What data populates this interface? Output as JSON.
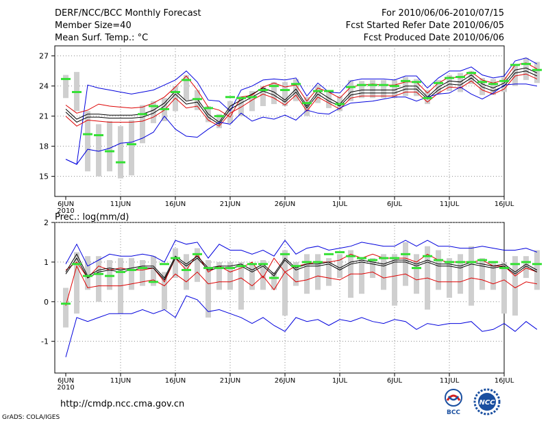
{
  "header": {
    "title": "DERF/NCC/BCC Monthly Forecast",
    "member": "Member Size=40",
    "variable": "Mean Surf. Temp.: °C",
    "period": "For 2010/06/06-2010/07/15",
    "started": "Fcst Started Refer Date 2010/06/05",
    "produced": "Fcst Produced Date 2010/06/06"
  },
  "footer": {
    "url": "http://cmdp.ncc.cma.gov.cn",
    "grads": "GrADS: COLA/IGES",
    "logo_bcc": "BCC",
    "logo_ncc": "NCC"
  },
  "chart_data": [
    {
      "type": "line",
      "title": "Mean Surf. Temp.: °C",
      "x_ticks": [
        "6JUN",
        "11JUN",
        "16JUN",
        "21JUN",
        "26JUN",
        "1JUL",
        "6JUL",
        "11JUL",
        "16JUL"
      ],
      "x_year": "2010",
      "ylim": [
        13,
        28
      ],
      "yticks": [
        15,
        18,
        21,
        24,
        27
      ],
      "series": [
        {
          "name": "max",
          "color": "#0000dd",
          "values": [
            16.7,
            16.2,
            24.1,
            23.8,
            23.6,
            23.4,
            23.2,
            23.4,
            23.6,
            24.1,
            24.6,
            25.5,
            24.4,
            22.6,
            22.5,
            21.5,
            23.6,
            24.0,
            24.6,
            24.7,
            24.6,
            24.8,
            23.0,
            24.3,
            23.4,
            23.3,
            24.5,
            24.7,
            24.7,
            24.7,
            24.6,
            25.0,
            25.0,
            23.8,
            24.8,
            25.5,
            25.5,
            25.9,
            25.1,
            24.8,
            25.0,
            26.5,
            26.8,
            26.2
          ]
        },
        {
          "name": "p90",
          "color": "#dd0000",
          "values": [
            22.1,
            21.3,
            21.6,
            22.2,
            22.0,
            21.9,
            21.8,
            21.9,
            22.3,
            22.9,
            23.9,
            25.0,
            23.6,
            21.9,
            21.6,
            20.9,
            22.9,
            23.1,
            23.9,
            24.3,
            23.9,
            24.1,
            22.5,
            23.8,
            23.4,
            22.8,
            23.9,
            24.1,
            24.2,
            24.1,
            24.1,
            24.4,
            24.4,
            23.3,
            24.3,
            24.9,
            24.8,
            25.4,
            24.6,
            24.3,
            24.6,
            26.1,
            26.3,
            25.7
          ]
        },
        {
          "name": "mean_upper",
          "color": "#000000",
          "values": [
            21.7,
            20.7,
            21.2,
            21.2,
            21.1,
            21.1,
            21.1,
            21.2,
            21.6,
            22.3,
            23.5,
            22.5,
            22.7,
            21.2,
            20.4,
            22.0,
            22.6,
            23.2,
            23.8,
            23.4,
            22.6,
            23.7,
            22.0,
            23.5,
            22.8,
            22.2,
            23.4,
            23.6,
            23.6,
            23.6,
            23.6,
            24.0,
            24.0,
            22.9,
            23.9,
            24.5,
            24.4,
            25.1,
            24.2,
            23.8,
            24.3,
            25.6,
            25.8,
            25.3
          ]
        },
        {
          "name": "mean",
          "color": "#000000",
          "values": [
            21.4,
            20.4,
            20.9,
            20.9,
            20.8,
            20.8,
            20.8,
            20.9,
            21.3,
            22.0,
            23.2,
            22.2,
            22.4,
            20.9,
            20.2,
            21.7,
            22.3,
            22.9,
            23.5,
            23.1,
            22.4,
            23.4,
            21.8,
            23.2,
            22.5,
            22.0,
            23.1,
            23.3,
            23.3,
            23.3,
            23.3,
            23.7,
            23.7,
            22.7,
            23.6,
            24.2,
            24.1,
            24.8,
            23.9,
            23.5,
            24.0,
            25.3,
            25.5,
            25.0
          ]
        },
        {
          "name": "p10",
          "color": "#dd0000",
          "values": [
            21.0,
            20.0,
            20.6,
            20.5,
            20.4,
            20.4,
            20.4,
            20.5,
            20.9,
            21.6,
            22.8,
            21.8,
            22.0,
            20.6,
            20.0,
            21.3,
            21.9,
            22.6,
            23.2,
            22.8,
            22.1,
            23.1,
            21.5,
            22.9,
            22.3,
            21.7,
            22.8,
            23.0,
            23.0,
            23.0,
            23.0,
            23.4,
            23.4,
            22.4,
            23.3,
            23.9,
            23.8,
            24.5,
            23.6,
            23.2,
            23.7,
            25.0,
            25.2,
            24.7
          ]
        },
        {
          "name": "min",
          "color": "#0000dd",
          "values": [
            16.7,
            16.2,
            17.7,
            17.5,
            17.8,
            18.3,
            18.4,
            18.8,
            19.4,
            21.0,
            19.7,
            19.0,
            18.9,
            19.7,
            20.4,
            20.2,
            21.3,
            20.5,
            20.9,
            20.7,
            21.1,
            20.6,
            21.6,
            21.3,
            21.2,
            21.8,
            22.3,
            22.4,
            22.5,
            22.7,
            22.9,
            22.9,
            22.5,
            22.9,
            23.2,
            23.3,
            23.9,
            23.2,
            22.7,
            23.3,
            24.1,
            24.2,
            24.2,
            24.0
          ]
        }
      ],
      "boxes": [
        [
          22.8,
          25.1
        ],
        [
          21.5,
          25.4
        ],
        [
          15.5,
          21.5
        ],
        [
          15.0,
          20.2
        ],
        [
          15.5,
          20.5
        ],
        [
          14.8,
          20.0
        ],
        [
          15.1,
          20.6
        ],
        [
          18.3,
          22.1
        ],
        [
          20.3,
          22.5
        ],
        [
          20.5,
          22.8
        ],
        [
          21.5,
          24.0
        ],
        [
          22.6,
          25.1
        ],
        [
          21.6,
          23.6
        ],
        [
          20.4,
          22.0
        ],
        [
          19.8,
          21.2
        ],
        [
          20.3,
          22.5
        ],
        [
          21.0,
          23.0
        ],
        [
          21.5,
          23.5
        ],
        [
          22.0,
          24.0
        ],
        [
          22.2,
          24.4
        ],
        [
          22.0,
          24.4
        ],
        [
          22.5,
          24.7
        ],
        [
          21.0,
          22.9
        ],
        [
          22.3,
          24.1
        ],
        [
          21.8,
          23.6
        ],
        [
          21.5,
          23.0
        ],
        [
          22.5,
          24.6
        ],
        [
          22.8,
          24.5
        ],
        [
          22.8,
          24.6
        ],
        [
          22.8,
          24.6
        ],
        [
          22.8,
          24.6
        ],
        [
          23.0,
          24.9
        ],
        [
          23.0,
          24.7
        ],
        [
          22.2,
          23.6
        ],
        [
          23.2,
          24.6
        ],
        [
          23.5,
          25.1
        ],
        [
          23.4,
          25.3
        ],
        [
          24.2,
          25.5
        ],
        [
          23.1,
          24.8
        ],
        [
          23.1,
          24.7
        ],
        [
          23.4,
          24.9
        ],
        [
          24.0,
          26.0
        ],
        [
          24.6,
          26.8
        ],
        [
          24.3,
          26.4
        ]
      ],
      "median": [
        24.7,
        23.4,
        19.2,
        19.1,
        17.5,
        16.4,
        18.2,
        21.2,
        22.0,
        21.7,
        23.4,
        24.6,
        22.7,
        21.8,
        21.0,
        22.9,
        22.8,
        22.9,
        23.6,
        24.0,
        23.6,
        24.2,
        22.3,
        23.5,
        23.5,
        22.2,
        23.9,
        24.1,
        24.1,
        24.1,
        24.0,
        24.5,
        24.4,
        22.8,
        24.3,
        24.8,
        24.9,
        25.3,
        24.4,
        24.2,
        24.5,
        26.1,
        26.2,
        25.6
      ]
    },
    {
      "type": "line",
      "title": "Prec.: log(mm/d)",
      "x_ticks": [
        "6JUN",
        "11JUN",
        "16JUN",
        "21JUN",
        "26JUN",
        "1JUL",
        "6JUL",
        "11JUL",
        "16JUL"
      ],
      "x_year": "2010",
      "ylim": [
        -1.8,
        2.0
      ],
      "yticks": [
        -1,
        0,
        1,
        2
      ],
      "series": [
        {
          "name": "max",
          "color": "#0000dd",
          "values": [
            -1.4,
            -0.4,
            -0.5,
            -0.4,
            -0.3,
            -0.3,
            -0.3,
            -0.2,
            -0.3,
            -0.2,
            -0.4,
            0.15,
            0.05,
            -0.25,
            -0.2,
            -0.3,
            -0.4,
            -0.55,
            -0.4,
            -0.6,
            -0.75,
            -0.4,
            -0.5,
            -0.45,
            -0.6,
            -0.45,
            -0.5,
            -0.4,
            -0.5,
            -0.55,
            -0.45,
            -0.5,
            -0.7,
            -0.55,
            -0.6,
            -0.55,
            -0.55,
            -0.5,
            -0.75,
            -0.7,
            -0.55,
            -0.75,
            -0.5,
            -0.7
          ]
        },
        {
          "name": "p90",
          "color": "#dd0000",
          "values": [
            0.8,
            1.0,
            0.6,
            0.9,
            0.8,
            0.85,
            0.8,
            0.8,
            0.85,
            0.5,
            1.1,
            0.8,
            1.2,
            0.75,
            0.9,
            0.75,
            0.85,
            1.0,
            0.6,
            1.1,
            0.75,
            0.9,
            0.95,
            1.0,
            1.0,
            1.05,
            1.2,
            1.1,
            1.2,
            1.1,
            1.1,
            1.1,
            1.0,
            1.2,
            1.05,
            1.0,
            1.0,
            1.0,
            1.05,
            0.9,
            0.9,
            0.65,
            0.85,
            0.75
          ]
        },
        {
          "name": "mean_upper",
          "color": "#000000",
          "values": [
            0.75,
            1.2,
            0.65,
            0.8,
            0.85,
            0.8,
            0.85,
            0.9,
            0.9,
            0.6,
            1.15,
            0.95,
            1.15,
            0.85,
            0.9,
            0.9,
            0.95,
            0.8,
            0.95,
            0.7,
            1.1,
            0.85,
            0.95,
            0.95,
            1.0,
            0.85,
            1.0,
            1.05,
            1.0,
            0.95,
            1.05,
            1.05,
            0.95,
            1.05,
            0.95,
            0.95,
            0.9,
            1.0,
            0.95,
            0.9,
            0.95,
            0.75,
            0.95,
            0.8
          ]
        },
        {
          "name": "mean",
          "color": "#000000",
          "values": [
            0.7,
            1.1,
            0.6,
            0.75,
            0.8,
            0.75,
            0.8,
            0.85,
            0.85,
            0.55,
            1.1,
            0.9,
            1.1,
            0.8,
            0.85,
            0.85,
            0.9,
            0.75,
            0.9,
            0.65,
            1.05,
            0.8,
            0.9,
            0.9,
            0.95,
            0.8,
            0.95,
            1.0,
            0.95,
            0.9,
            1.0,
            1.0,
            0.9,
            1.0,
            0.9,
            0.9,
            0.85,
            0.95,
            0.9,
            0.85,
            0.9,
            0.7,
            0.9,
            0.75
          ]
        },
        {
          "name": "p10",
          "color": "#dd0000",
          "values": [
            -0.1,
            0.9,
            0.35,
            0.4,
            0.4,
            0.4,
            0.45,
            0.5,
            0.55,
            0.4,
            0.7,
            0.5,
            0.75,
            0.45,
            0.5,
            0.5,
            0.6,
            0.4,
            0.65,
            0.3,
            0.75,
            0.5,
            0.55,
            0.65,
            0.6,
            0.55,
            0.7,
            0.7,
            0.75,
            0.6,
            0.65,
            0.7,
            0.55,
            0.6,
            0.5,
            0.5,
            0.5,
            0.6,
            0.55,
            0.45,
            0.55,
            0.35,
            0.5,
            0.45
          ]
        },
        {
          "name": "min",
          "color": "#0000dd",
          "values": [
            0.95,
            1.45,
            0.9,
            1.05,
            1.2,
            1.15,
            1.15,
            1.2,
            1.15,
            1.0,
            1.55,
            1.45,
            1.5,
            1.1,
            1.45,
            1.3,
            1.3,
            1.2,
            1.3,
            1.15,
            1.55,
            1.2,
            1.35,
            1.4,
            1.3,
            1.35,
            1.4,
            1.5,
            1.45,
            1.4,
            1.4,
            1.55,
            1.4,
            1.55,
            1.4,
            1.4,
            1.35,
            1.35,
            1.4,
            1.35,
            1.3,
            1.3,
            1.35,
            1.25
          ]
        }
      ],
      "boxes": [
        [
          -0.65,
          0.35
        ],
        [
          -0.3,
          1.25
        ],
        [
          0.3,
          1.15
        ],
        [
          0.0,
          1.15
        ],
        [
          0.3,
          1.05
        ],
        [
          -0.3,
          1.1
        ],
        [
          0.3,
          1.1
        ],
        [
          0.4,
          1.05
        ],
        [
          0.4,
          1.15
        ],
        [
          -0.2,
          0.75
        ],
        [
          0.6,
          1.35
        ],
        [
          0.3,
          1.2
        ],
        [
          0.5,
          1.35
        ],
        [
          -0.4,
          1.05
        ],
        [
          0.3,
          1.0
        ],
        [
          0.3,
          1.0
        ],
        [
          -0.2,
          1.0
        ],
        [
          0.3,
          0.95
        ],
        [
          0.3,
          1.05
        ],
        [
          0.3,
          0.75
        ],
        [
          -0.35,
          1.3
        ],
        [
          0.4,
          1.0
        ],
        [
          0.2,
          1.2
        ],
        [
          0.3,
          1.2
        ],
        [
          0.4,
          1.1
        ],
        [
          0.6,
          1.2
        ],
        [
          0.1,
          1.3
        ],
        [
          0.2,
          1.1
        ],
        [
          0.6,
          1.1
        ],
        [
          0.3,
          1.2
        ],
        [
          -0.1,
          1.2
        ],
        [
          0.4,
          1.5
        ],
        [
          0.2,
          1.2
        ],
        [
          -0.2,
          1.4
        ],
        [
          0.3,
          1.3
        ],
        [
          0.1,
          1.1
        ],
        [
          0.2,
          1.2
        ],
        [
          -0.1,
          1.4
        ],
        [
          0.3,
          1.1
        ],
        [
          0.3,
          1.0
        ],
        [
          -0.3,
          1.0
        ],
        [
          -0.35,
          1.15
        ],
        [
          0.6,
          1.15
        ],
        [
          0.3,
          1.3
        ]
      ],
      "median": [
        -0.05,
        0.95,
        0.65,
        0.7,
        0.65,
        0.75,
        0.8,
        0.85,
        0.5,
        0.95,
        1.1,
        0.8,
        1.2,
        0.85,
        0.85,
        0.85,
        0.9,
        0.95,
        0.95,
        0.6,
        1.2,
        0.9,
        1.0,
        1.0,
        1.2,
        1.25,
        1.15,
        1.1,
        1.05,
        1.1,
        1.1,
        1.2,
        0.85,
        1.15,
        1.05,
        1.0,
        1.0,
        1.0,
        1.05,
        1.0,
        0.85,
        0.95,
        1.0,
        0.95
      ]
    }
  ]
}
